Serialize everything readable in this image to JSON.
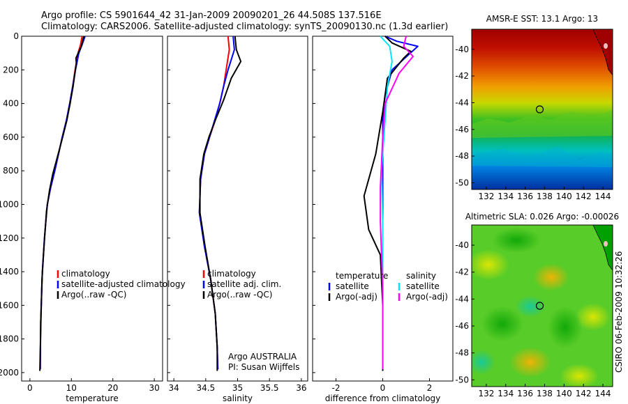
{
  "title": {
    "line1": "Argo profile: CS 5901644_42 31-Jan-2009 20090201_26 44.508S 137.516E",
    "line2": "Climatology: CARS2006. Satellite-adjusted climatology: synTS_20090130.nc (1.3d earlier)"
  },
  "side_stamp": "CSIRO 06-Feb-2009 10:32:26",
  "colors": {
    "climatology": "#ff0000",
    "satellite": "#0000ff",
    "argo": "#000000",
    "satellite_s": "#00e5ff",
    "argo_s": "#ff00ff"
  },
  "chart_data": [
    {
      "type": "line",
      "panel": "temperature",
      "xlabel": "temperature",
      "xticks": [
        0,
        10,
        20,
        30
      ],
      "xlim": [
        -2,
        32
      ],
      "yticks": [
        0,
        200,
        400,
        600,
        800,
        1000,
        1200,
        1400,
        1600,
        1800,
        2000
      ],
      "ylim": [
        0,
        2050
      ],
      "y_reversed": true,
      "legend_items": [
        "climatology",
        "satellite-adjusted climatology",
        "Argo(..raw -QC)"
      ],
      "series": [
        {
          "key": "clim",
          "color": "#ff0000",
          "x": [
            12.6,
            12.2,
            11.6,
            10.9,
            10.3,
            9.6,
            8.8,
            7.8,
            6.9,
            6.0,
            5.0,
            4.2,
            3.5,
            3.0,
            2.6,
            2.5
          ],
          "y": [
            0,
            50,
            100,
            200,
            300,
            400,
            500,
            600,
            700,
            800,
            900,
            1000,
            1200,
            1400,
            1700,
            1980
          ]
        },
        {
          "key": "sat",
          "color": "#0000ff",
          "x": [
            13.3,
            12.6,
            11.8,
            11.0,
            10.3,
            9.6,
            8.8,
            7.8,
            6.9,
            6.0,
            5.0,
            4.2,
            3.5,
            3.0,
            2.6,
            2.5
          ],
          "y": [
            0,
            50,
            100,
            200,
            300,
            400,
            500,
            600,
            700,
            800,
            900,
            1000,
            1200,
            1400,
            1700,
            1980
          ]
        },
        {
          "key": "argo",
          "color": "#000000",
          "x": [
            13.0,
            12.4,
            11.1,
            11.2,
            10.4,
            9.7,
            8.9,
            7.9,
            6.6,
            5.5,
            4.7,
            4.0,
            3.4,
            2.9,
            2.6,
            2.4
          ],
          "y": [
            0,
            60,
            130,
            160,
            300,
            400,
            500,
            600,
            720,
            820,
            920,
            1040,
            1250,
            1450,
            1750,
            1990
          ]
        }
      ]
    },
    {
      "type": "line",
      "panel": "salinity",
      "xlabel": "salinity",
      "xticks": [
        34,
        34.5,
        35,
        35.5,
        36
      ],
      "xlim": [
        33.9,
        36.1
      ],
      "yticks": [
        0,
        200,
        400,
        600,
        800,
        1000,
        1200,
        1400,
        1600,
        1800,
        2000
      ],
      "ylim": [
        0,
        2050
      ],
      "y_reversed": true,
      "legend_items": [
        "climatology",
        "satellite adj. clim.",
        "Argo(..raw -QC)"
      ],
      "annotation": {
        "line1": "Argo AUSTRALIA",
        "line2": "PI: Susan Wijffels"
      },
      "series": [
        {
          "key": "clim",
          "color": "#ff0000",
          "x": [
            34.85,
            34.87,
            34.82,
            34.78,
            34.72,
            34.65,
            34.56,
            34.48,
            34.42,
            34.4,
            34.48,
            34.58,
            34.65,
            34.68,
            34.69
          ],
          "y": [
            0,
            80,
            200,
            300,
            400,
            500,
            600,
            700,
            850,
            1050,
            1250,
            1450,
            1650,
            1850,
            1980
          ]
        },
        {
          "key": "sat",
          "color": "#0000ff",
          "x": [
            34.93,
            34.95,
            34.85,
            34.78,
            34.72,
            34.64,
            34.56,
            34.48,
            34.42,
            34.4,
            34.48,
            34.58,
            34.65,
            34.68,
            34.69
          ],
          "y": [
            0,
            80,
            200,
            300,
            400,
            500,
            600,
            700,
            850,
            1050,
            1250,
            1450,
            1650,
            1850,
            1980
          ]
        },
        {
          "key": "argo",
          "color": "#000000",
          "x": [
            34.96,
            34.98,
            35.05,
            34.9,
            34.78,
            34.65,
            34.55,
            34.47,
            34.41,
            34.41,
            34.49,
            34.58,
            34.65,
            34.68,
            34.68
          ],
          "y": [
            0,
            80,
            150,
            250,
            380,
            500,
            600,
            700,
            850,
            1050,
            1250,
            1450,
            1650,
            1850,
            1990
          ]
        }
      ]
    },
    {
      "type": "line",
      "panel": "difference",
      "xlabel": "difference from climatology",
      "xticks": [
        -2,
        0,
        2
      ],
      "xlim": [
        -3,
        3
      ],
      "yticks": [
        0,
        200,
        400,
        600,
        800,
        1000,
        1200,
        1400,
        1600,
        1800,
        2000
      ],
      "ylim": [
        0,
        2050
      ],
      "y_reversed": true,
      "legend": {
        "left_title": "temperature",
        "left_items": [
          "satellite",
          "Argo(-adj)"
        ],
        "right_title": "salinity",
        "right_items": [
          "satellite",
          "Argo(-adj)"
        ]
      },
      "series": [
        {
          "key": "t_sat",
          "color": "#0000ff",
          "x": [
            0.1,
            0.6,
            1.5,
            1.1,
            0.4,
            0.1,
            0.0,
            0.0,
            0.0,
            0.0,
            0.0
          ],
          "y": [
            0,
            30,
            60,
            110,
            200,
            350,
            500,
            800,
            1200,
            1600,
            1980
          ]
        },
        {
          "key": "t_argo",
          "color": "#000000",
          "x": [
            0.1,
            0.4,
            1.2,
            0.9,
            0.2,
            0.0,
            -0.3,
            -0.8,
            -0.6,
            -0.1,
            0.0,
            0.0
          ],
          "y": [
            0,
            40,
            90,
            130,
            250,
            450,
            700,
            950,
            1150,
            1300,
            1600,
            1990
          ]
        },
        {
          "key": "s_sat",
          "color": "#00e5ff",
          "x": [
            -0.1,
            0.3,
            0.4,
            0.2,
            0.1,
            -0.05,
            0.0,
            0.0,
            0.0
          ],
          "y": [
            0,
            60,
            150,
            300,
            500,
            800,
            1100,
            1500,
            1980
          ]
        },
        {
          "key": "s_argo",
          "color": "#ff00ff",
          "x": [
            1.0,
            0.9,
            1.3,
            0.7,
            0.1,
            0.0,
            -0.1,
            -0.1,
            0.0,
            0.0
          ],
          "y": [
            0,
            60,
            120,
            220,
            400,
            600,
            900,
            1100,
            1500,
            1980
          ]
        }
      ]
    },
    {
      "type": "heatmap",
      "panel": "sst_map",
      "title": "AMSR-E SST: 13.1 Argo: 13",
      "xticks": [
        132,
        134,
        136,
        138,
        140,
        142,
        144
      ],
      "yticks": [
        -40,
        -42,
        -44,
        -46,
        -48,
        -50
      ],
      "xlim": [
        130.5,
        145
      ],
      "ylim": [
        -50.5,
        -38.5
      ],
      "marker": {
        "lon": 137.5,
        "lat": -44.5
      }
    },
    {
      "type": "heatmap",
      "panel": "sla_map",
      "title": "Altimetric SLA: 0.026 Argo: -0.00026",
      "xticks": [
        132,
        134,
        136,
        138,
        140,
        142,
        144
      ],
      "yticks": [
        -40,
        -42,
        -44,
        -46,
        -48,
        -50
      ],
      "xlim": [
        130.5,
        145
      ],
      "ylim": [
        -50.5,
        -38.5
      ],
      "marker": {
        "lon": 137.5,
        "lat": -44.5
      }
    }
  ]
}
